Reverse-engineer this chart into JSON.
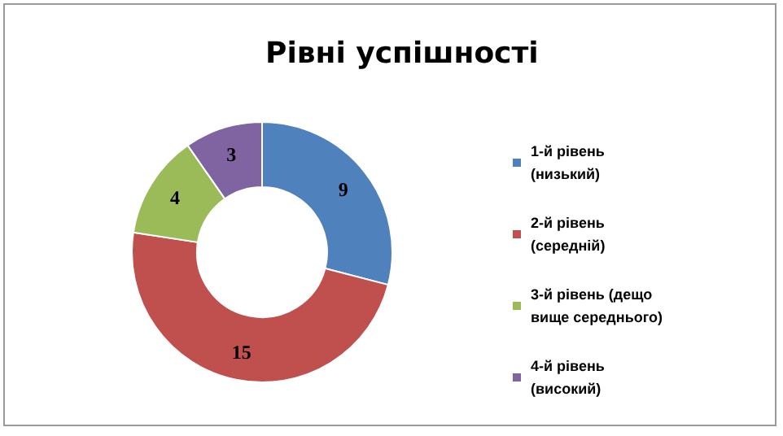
{
  "chart_data": {
    "type": "donut",
    "title": "Рівні успішності",
    "categories": [
      "1-й рівень (низький)",
      "2-й рівень  (середній)",
      "3-й рівень (дещо вище середнього)",
      "4-й рівень (високий)"
    ],
    "values": [
      9,
      15,
      4,
      3
    ],
    "colors": [
      "#4f81bd",
      "#c0504d",
      "#9bbb59",
      "#8064a2"
    ],
    "data_labels": true,
    "legend": "right"
  }
}
